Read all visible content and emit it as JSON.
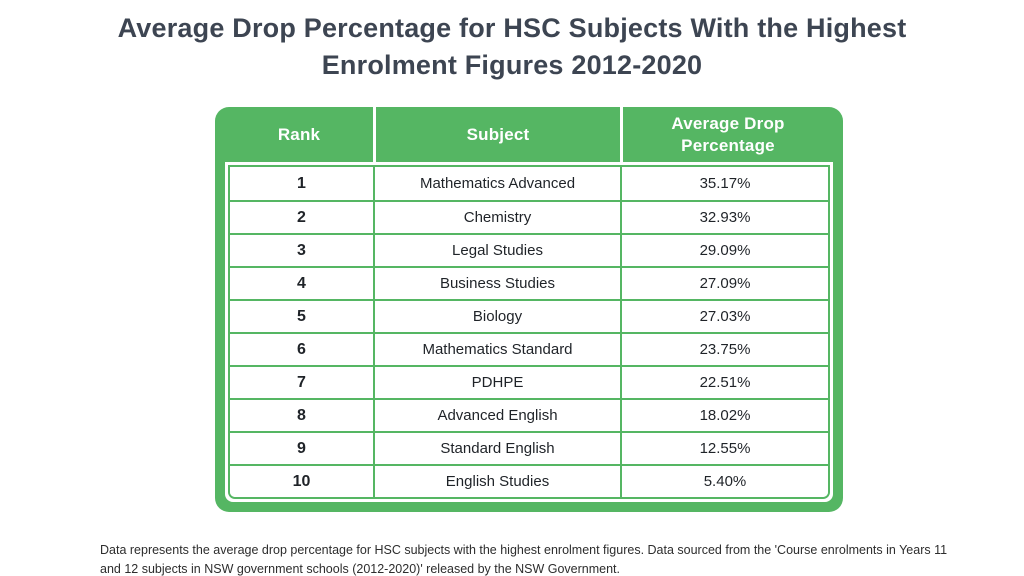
{
  "title": "Average Drop Percentage for HSC Subjects With the Highest Enrolment Figures 2012-2020",
  "table": {
    "columns": [
      "Rank",
      "Subject",
      "Average Drop Percentage"
    ],
    "rows": [
      {
        "rank": "1",
        "subject": "Mathematics Advanced",
        "pct": "35.17%"
      },
      {
        "rank": "2",
        "subject": "Chemistry",
        "pct": "32.93%"
      },
      {
        "rank": "3",
        "subject": "Legal Studies",
        "pct": "29.09%"
      },
      {
        "rank": "4",
        "subject": "Business Studies",
        "pct": "27.09%"
      },
      {
        "rank": "5",
        "subject": "Biology",
        "pct": "27.03%"
      },
      {
        "rank": "6",
        "subject": "Mathematics Standard",
        "pct": "23.75%"
      },
      {
        "rank": "7",
        "subject": "PDHPE",
        "pct": "22.51%"
      },
      {
        "rank": "8",
        "subject": "Advanced English",
        "pct": "18.02%"
      },
      {
        "rank": "9",
        "subject": "Standard English",
        "pct": "12.55%"
      },
      {
        "rank": "10",
        "subject": "English Studies",
        "pct": "5.40%"
      }
    ]
  },
  "footnote": "Data represents the average drop percentage for HSC subjects with the highest enrolment figures. Data sourced from the 'Course enrolments in Years 11 and 12 subjects in NSW government schools (2012-2020)' released by the NSW Government.",
  "colors": {
    "accent_green": "#55b663",
    "title_text": "#3d4552",
    "body_text": "#1f2328",
    "header_text": "#ffffff",
    "background": "#ffffff"
  },
  "chart_data": {
    "type": "table",
    "title": "Average Drop Percentage for HSC Subjects With the Highest Enrolment Figures 2012-2020",
    "columns": [
      "Rank",
      "Subject",
      "Average Drop Percentage"
    ],
    "rows": [
      [
        1,
        "Mathematics Advanced",
        35.17
      ],
      [
        2,
        "Chemistry",
        32.93
      ],
      [
        3,
        "Legal Studies",
        29.09
      ],
      [
        4,
        "Business Studies",
        27.09
      ],
      [
        5,
        "Biology",
        27.03
      ],
      [
        6,
        "Mathematics Standard",
        23.75
      ],
      [
        7,
        "PDHPE",
        22.51
      ],
      [
        8,
        "Advanced English",
        18.02
      ],
      [
        9,
        "Standard English",
        12.55
      ],
      [
        10,
        "English Studies",
        5.4
      ]
    ],
    "value_unit": "%",
    "footnote": "Data represents the average drop percentage for HSC subjects with the highest enrolment figures. Data sourced from the 'Course enrolments in Years 11 and 12 subjects in NSW government schools (2012-2020)' released by the NSW Government."
  }
}
